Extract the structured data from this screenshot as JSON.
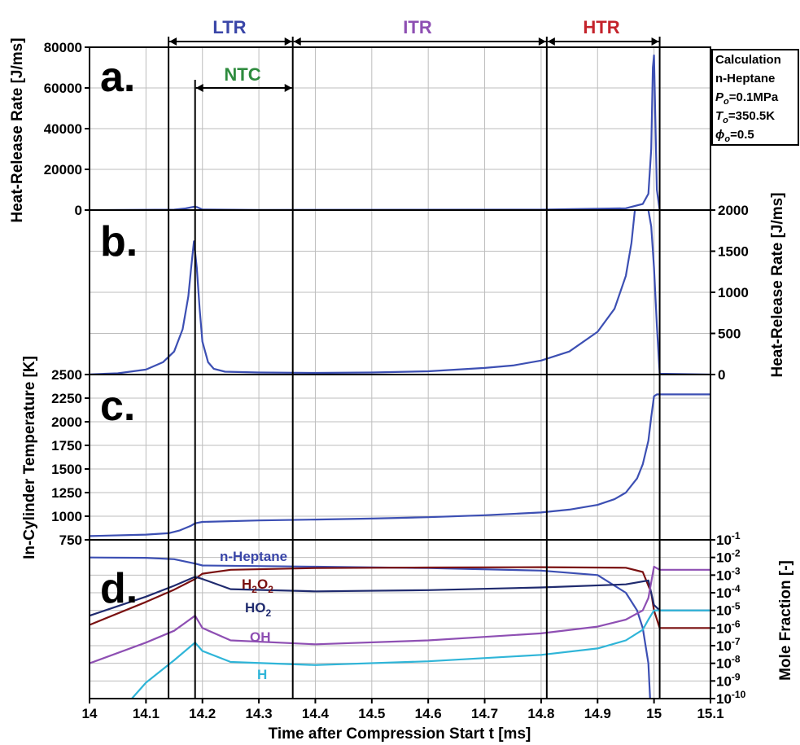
{
  "figure": {
    "x_axis_label": "Time after Compression Start t [ms]",
    "x_ticks": [
      "14",
      "14.1",
      "14.2",
      "14.3",
      "14.4",
      "14.5",
      "14.6",
      "14.7",
      "14.8",
      "14.9",
      "15",
      "15.1"
    ],
    "regions": [
      {
        "label": "LTR",
        "from": 14.14,
        "to": 14.36,
        "color": "#3a46a8"
      },
      {
        "label": "ITR",
        "from": 14.36,
        "to": 14.81,
        "color": "#8e4fb3"
      },
      {
        "label": "HTR",
        "from": 14.81,
        "to": 15.01,
        "color": "#c4232b"
      },
      {
        "label": "NTC",
        "from": 14.187,
        "to": 14.36,
        "color": "#2e8b3e"
      }
    ],
    "markers": [
      14.14,
      14.187,
      14.36,
      14.81,
      15.01
    ],
    "calc_box": {
      "line1": "Calculation",
      "line2": "n-Heptane",
      "p_sym": "P",
      "p_sub": "o",
      "p_val": "=0.1MPa",
      "t_sym": "T",
      "t_sub": "o",
      "t_val": "=350.5K",
      "phi_sym": "ϕ",
      "phi_sub": "o",
      "phi_val": "=0.5"
    },
    "panels": {
      "a": {
        "letter": "a.",
        "ylabel": "Heat-Release Rate [J/ms]",
        "ticks": [
          "80000",
          "60000",
          "40000",
          "20000",
          "0"
        ]
      },
      "b": {
        "letter": "b.",
        "ylabel": "Heat-Release Rate [J/ms]",
        "ticks": [
          "2000",
          "1500",
          "1000",
          "500",
          "0"
        ]
      },
      "c": {
        "letter": "c.",
        "ylabel": "In-Cylinder Temperature [K]",
        "ticks": [
          "2500",
          "2250",
          "2000",
          "1750",
          "1500",
          "1250",
          "1000",
          "750"
        ]
      },
      "d": {
        "letter": "d.",
        "ylabel": "Mole Fraction [-]",
        "tick_base": "10",
        "tick_exps": [
          "-1",
          "-2",
          "-3",
          "-4",
          "-5",
          "-6",
          "-7",
          "-8",
          "-9",
          "-10"
        ],
        "labels": [
          {
            "text": "n-Heptane",
            "color": "#3a46a8"
          },
          {
            "text": "H",
            "sub": "2",
            "text2": "O",
            "sub2": "2",
            "color": "#7a1010"
          },
          {
            "text": "HO",
            "sub": "2",
            "color": "#1f2a6e"
          },
          {
            "text": "OH",
            "color": "#8e4fb3"
          },
          {
            "text": "H",
            "color": "#2fb5d8"
          }
        ]
      }
    }
  },
  "chart_data": [
    {
      "type": "line",
      "panel": "a",
      "title": "",
      "xlabel": "Time after Compression Start t [ms]",
      "ylabel": "Heat-Release Rate [J/ms]",
      "xlim": [
        14,
        15.1
      ],
      "ylim": [
        0,
        80000
      ],
      "series": [
        {
          "color": "#3c4fb3",
          "x": [
            14.0,
            14.15,
            14.17,
            14.185,
            14.19,
            14.2,
            14.3,
            14.8,
            14.95,
            14.98,
            14.99,
            14.995,
            14.998,
            15.0,
            15.005,
            15.01,
            15.1
          ],
          "y": [
            0,
            200,
            800,
            1600,
            1500,
            300,
            100,
            200,
            900,
            3000,
            8000,
            30000,
            70000,
            76000,
            10000,
            0,
            0
          ]
        }
      ]
    },
    {
      "type": "line",
      "panel": "b",
      "title": "",
      "ylabel": "Heat-Release Rate [J/ms]",
      "xlim": [
        14,
        15.1
      ],
      "ylim": [
        0,
        2000
      ],
      "series": [
        {
          "color": "#3c4fb3",
          "x": [
            14.0,
            14.05,
            14.1,
            14.13,
            14.15,
            14.165,
            14.175,
            14.18,
            14.185,
            14.19,
            14.195,
            14.2,
            14.21,
            14.22,
            14.24,
            14.3,
            14.4,
            14.5,
            14.6,
            14.7,
            14.75,
            14.8,
            14.85,
            14.9,
            14.93,
            14.95,
            14.96,
            14.966,
            14.99,
            14.995,
            15.0,
            15.005,
            15.01,
            15.1
          ],
          "y": [
            2,
            15,
            60,
            150,
            280,
            550,
            950,
            1300,
            1620,
            1300,
            800,
            400,
            150,
            70,
            35,
            25,
            20,
            25,
            40,
            80,
            110,
            170,
            280,
            520,
            800,
            1200,
            1600,
            2000,
            2000,
            1800,
            1300,
            600,
            10,
            0
          ]
        }
      ]
    },
    {
      "type": "line",
      "panel": "c",
      "title": "",
      "ylabel": "In-Cylinder Temperature [K]",
      "xlim": [
        14,
        15.1
      ],
      "ylim": [
        750,
        2500
      ],
      "series": [
        {
          "color": "#3c4fb3",
          "x": [
            14.0,
            14.1,
            14.14,
            14.16,
            14.18,
            14.187,
            14.2,
            14.3,
            14.4,
            14.5,
            14.6,
            14.7,
            14.8,
            14.85,
            14.9,
            14.93,
            14.95,
            14.97,
            14.98,
            14.99,
            14.995,
            15.0,
            15.005,
            15.1
          ],
          "y": [
            790,
            805,
            820,
            850,
            900,
            925,
            940,
            955,
            965,
            975,
            990,
            1010,
            1040,
            1070,
            1120,
            1180,
            1250,
            1400,
            1550,
            1800,
            2050,
            2270,
            2290,
            2290
          ]
        }
      ]
    },
    {
      "type": "line",
      "panel": "d",
      "y_scale": "log",
      "title": "",
      "ylabel": "Mole Fraction [-]",
      "xlim": [
        14,
        15.1
      ],
      "ylim": [
        1e-10,
        0.1
      ],
      "series": [
        {
          "name": "n-Heptane",
          "color": "#3c4fb3",
          "x": [
            14.0,
            14.1,
            14.15,
            14.187,
            14.2,
            14.4,
            14.6,
            14.8,
            14.9,
            14.95,
            14.97,
            14.98,
            14.99,
            14.993
          ],
          "y": [
            0.01,
            0.0095,
            0.008,
            0.0045,
            0.0035,
            0.003,
            0.0025,
            0.0018,
            0.001,
            0.0001,
            1e-05,
            1e-06,
            1e-08,
            1e-10
          ]
        },
        {
          "name": "H2O2",
          "color": "#7a1010",
          "x": [
            14.0,
            14.1,
            14.15,
            14.187,
            14.2,
            14.25,
            14.4,
            14.6,
            14.8,
            14.95,
            14.98,
            14.995,
            15.0,
            15.01,
            15.1
          ],
          "y": [
            1.5e-06,
            3e-05,
            0.00015,
            0.0006,
            0.0012,
            0.002,
            0.0025,
            0.0027,
            0.0028,
            0.0026,
            0.0015,
            0.0001,
            1e-05,
            1e-06,
            1e-06
          ]
        },
        {
          "name": "HO2",
          "color": "#1f2a6e",
          "x": [
            14.0,
            14.1,
            14.15,
            14.187,
            14.2,
            14.25,
            14.4,
            14.6,
            14.8,
            14.95,
            14.99,
            15.0,
            15.01,
            15.1
          ],
          "y": [
            5e-06,
            6e-05,
            0.00025,
            0.0008,
            0.0006,
            0.00016,
            0.00012,
            0.00014,
            0.0002,
            0.0003,
            0.0005,
            2e-05,
            1e-05,
            1e-05
          ]
        },
        {
          "name": "OH",
          "color": "#8e4fb3",
          "x": [
            14.0,
            14.1,
            14.15,
            14.187,
            14.2,
            14.25,
            14.4,
            14.6,
            14.8,
            14.9,
            14.95,
            14.98,
            14.99,
            15.0,
            15.01,
            15.1
          ],
          "y": [
            1e-08,
            1.5e-07,
            7e-07,
            5e-06,
            1e-06,
            2e-07,
            1.2e-07,
            2e-07,
            5e-07,
            1.2e-06,
            3e-06,
            1e-05,
            5e-05,
            0.003,
            0.002,
            0.002
          ]
        },
        {
          "name": "H",
          "color": "#2fb5d8",
          "x": [
            14.075,
            14.1,
            14.15,
            14.187,
            14.2,
            14.25,
            14.4,
            14.6,
            14.8,
            14.9,
            14.95,
            14.98,
            14.99,
            15.0,
            15.01,
            15.1
          ],
          "y": [
            1e-10,
            8e-10,
            1.5e-08,
            1.5e-07,
            5e-08,
            1.2e-08,
            8e-09,
            1.3e-08,
            3e-08,
            7e-08,
            2e-07,
            8e-07,
            3e-06,
            1e-05,
            1e-05,
            1e-05
          ]
        }
      ]
    }
  ]
}
